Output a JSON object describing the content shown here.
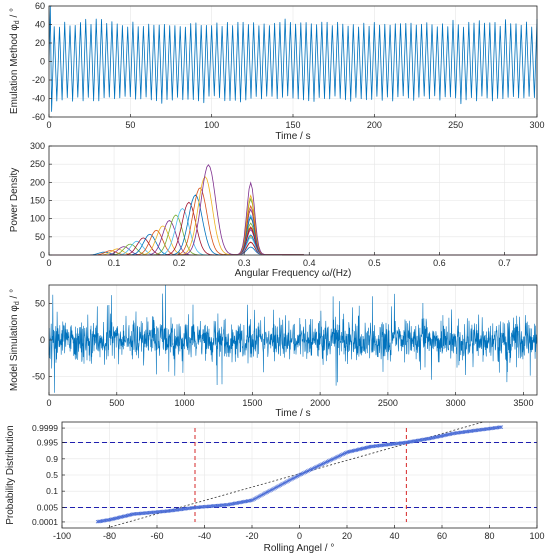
{
  "colors": {
    "signal": "#0072BD",
    "qq_marker": "#4A6CD6",
    "ref_blue": "#1F1FAF",
    "ref_red": "#D62728",
    "fit_line": "#333333",
    "axis": "#262626",
    "grid": "#E6E6E6",
    "spectra": [
      "#0072BD",
      "#D95319",
      "#EDB120",
      "#7E2F8E",
      "#77AC30",
      "#4DBEEE",
      "#A2142F"
    ]
  },
  "chart_data": [
    {
      "type": "line",
      "ylabel": "Emulation Method  φ",
      "ylabel_sub": "d",
      "ylabel_unit": " / °",
      "xlabel": "Time / s",
      "xlim": [
        0,
        300
      ],
      "ylim": [
        -60,
        60
      ],
      "xticks": [
        "0",
        "50",
        "100",
        "150",
        "200",
        "250",
        "300"
      ],
      "yticks": [
        "-60",
        "-40",
        "-20",
        "0",
        "20",
        "40",
        "60"
      ],
      "series": [
        {
          "amplitude_typical": 40,
          "amplitude_peak": 43,
          "oscillation_frequency_hz": 0.31,
          "initial_spike": 60
        }
      ]
    },
    {
      "type": "line",
      "ylabel": "Power Density",
      "xlabel": "Angular Frequency  ω/(Hz)",
      "xlim": [
        0,
        0.75
      ],
      "ylim": [
        0,
        300
      ],
      "xticks": [
        "0",
        "0.1",
        "0.2",
        "0.3",
        "0.4",
        "0.5",
        "0.6",
        "0.7"
      ],
      "yticks": [
        "0",
        "50",
        "100",
        "150",
        "200",
        "250",
        "300"
      ],
      "curves": [
        {
          "peak_x": 0.085,
          "peak_y": 8
        },
        {
          "peak_x": 0.095,
          "peak_y": 12
        },
        {
          "peak_x": 0.105,
          "peak_y": 17
        },
        {
          "peak_x": 0.115,
          "peak_y": 23
        },
        {
          "peak_x": 0.125,
          "peak_y": 30
        },
        {
          "peak_x": 0.135,
          "peak_y": 38
        },
        {
          "peak_x": 0.145,
          "peak_y": 47
        },
        {
          "peak_x": 0.155,
          "peak_y": 57
        },
        {
          "peak_x": 0.165,
          "peak_y": 68
        },
        {
          "peak_x": 0.175,
          "peak_y": 80
        },
        {
          "peak_x": 0.185,
          "peak_y": 95
        },
        {
          "peak_x": 0.195,
          "peak_y": 110
        },
        {
          "peak_x": 0.205,
          "peak_y": 128
        },
        {
          "peak_x": 0.215,
          "peak_y": 145
        },
        {
          "peak_x": 0.225,
          "peak_y": 165
        },
        {
          "peak_x": 0.232,
          "peak_y": 185
        },
        {
          "peak_x": 0.24,
          "peak_y": 215
        },
        {
          "peak_x": 0.245,
          "peak_y": 248
        }
      ],
      "resonance": {
        "x": 0.31,
        "ys": [
          60,
          90,
          120,
          150,
          175,
          205
        ]
      }
    },
    {
      "type": "line",
      "ylabel": "Model Simulation  φ",
      "ylabel_sub": "d",
      "ylabel_unit": " / °",
      "xlabel": "Time / s",
      "xlim": [
        0,
        3600
      ],
      "ylim": [
        -75,
        75
      ],
      "xticks": [
        "0",
        "500",
        "1000",
        "1500",
        "2000",
        "2500",
        "3000",
        "3500"
      ],
      "yticks": [
        "-50",
        "0",
        "50"
      ],
      "series": [
        {
          "typical_std": 14,
          "max_spike": 78,
          "min_spike": -72
        }
      ]
    },
    {
      "type": "scatter",
      "ylabel": "Probability Distribution",
      "xlabel": "Rolling Angel / °",
      "xlim": [
        -100,
        100
      ],
      "xticks": [
        "-100",
        "-80",
        "-60",
        "-40",
        "-20",
        "0",
        "20",
        "40",
        "60",
        "80",
        "100"
      ],
      "yticks": [
        "0.0001",
        "0.005",
        "0.1",
        "0.5",
        "0.9",
        "0.995",
        "0.9999"
      ],
      "ytick_values": [
        0.0001,
        0.005,
        0.1,
        0.5,
        0.9,
        0.995,
        0.9999
      ],
      "reference_lines": {
        "horizontal_blue_dashed": [
          0.005,
          0.995
        ],
        "vertical_red_dashed": [
          -44,
          45
        ]
      },
      "fit_line": {
        "x": [
          -100,
          100
        ],
        "p": [
          0.0001,
          0.9999
        ],
        "z_at": {
          "-100": -5.2,
          "100": 5.4
        }
      },
      "sample_points": [
        {
          "x": -85,
          "z": -3.7
        },
        {
          "x": -80,
          "z": -3.55
        },
        {
          "x": -70,
          "z": -3.1
        },
        {
          "x": -55,
          "z": -2.85
        },
        {
          "x": -44,
          "z": -2.58
        },
        {
          "x": -30,
          "z": -2.35
        },
        {
          "x": -20,
          "z": -2.0
        },
        {
          "x": -10,
          "z": -1.0
        },
        {
          "x": 0,
          "z": 0
        },
        {
          "x": 10,
          "z": 0.9
        },
        {
          "x": 20,
          "z": 1.8
        },
        {
          "x": 30,
          "z": 2.25
        },
        {
          "x": 45,
          "z": 2.58
        },
        {
          "x": 55,
          "z": 2.9
        },
        {
          "x": 65,
          "z": 3.3
        },
        {
          "x": 75,
          "z": 3.55
        },
        {
          "x": 85,
          "z": 3.8
        }
      ]
    }
  ]
}
